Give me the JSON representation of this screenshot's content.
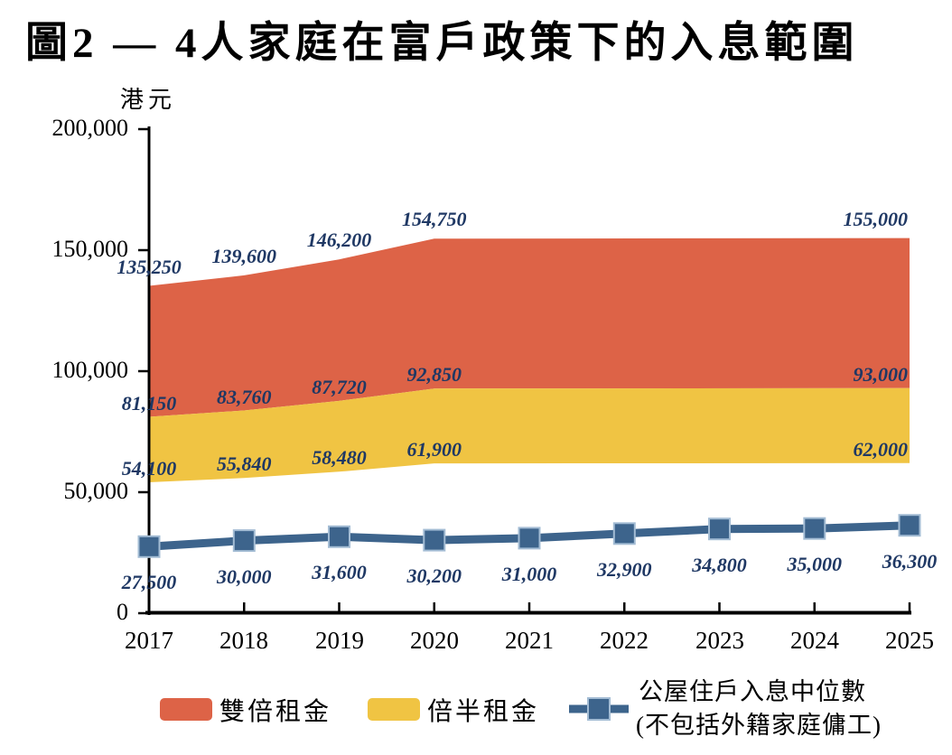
{
  "title": "圖2 — 4人家庭在富戶政策下的入息範圍",
  "y_axis": {
    "unit_label": "港元",
    "tick_labels": [
      "200,000",
      "150,000",
      "100,000",
      "50,000",
      "0"
    ]
  },
  "legend": {
    "double_rent_label": "雙倍租金",
    "one_and_half_rent_label": "倍半租金",
    "median_label_line1": "公屋住戶入息中位數",
    "median_label_line2": "(不包括外籍家庭傭工)"
  },
  "colors": {
    "double_rent": "#DD6347",
    "one_and_half_rent": "#F0C443",
    "median_line": "#3D648C",
    "marker_border": "#A3BCD4",
    "data_label": "#1F3864",
    "axis": "#000000"
  },
  "chart_data": {
    "type": "area+line",
    "title": "圖2 — 4人家庭在富戶政策下的入息範圍",
    "ylabel": "港元",
    "ylim": [
      0,
      200000
    ],
    "y_ticks": [
      0,
      50000,
      100000,
      150000,
      200000
    ],
    "grid": false,
    "legend_position": "bottom",
    "categories": [
      "2017",
      "2018",
      "2019",
      "2020",
      "2021",
      "2022",
      "2023",
      "2024",
      "2025"
    ],
    "series": [
      {
        "name": "雙倍租金入息上限",
        "key": "double_rent_upper",
        "type": "area-upper-bound",
        "values": [
          135250,
          139600,
          146200,
          154750,
          null,
          null,
          null,
          null,
          155000
        ]
      },
      {
        "name": "倍半租金入息上限",
        "key": "one_and_half_upper",
        "type": "area-boundary",
        "values": [
          81150,
          83760,
          87720,
          92850,
          null,
          null,
          null,
          null,
          93000
        ]
      },
      {
        "name": "倍半租金入息下限",
        "key": "one_and_half_lower",
        "type": "area-lower-bound",
        "values": [
          54100,
          55840,
          58480,
          61900,
          null,
          null,
          null,
          null,
          62000
        ]
      },
      {
        "name": "公屋住戶入息中位數(不包括外籍家庭傭工)",
        "key": "median_income",
        "type": "line",
        "values": [
          27500,
          30000,
          31600,
          30200,
          31000,
          32900,
          34800,
          35000,
          36300
        ]
      }
    ]
  }
}
